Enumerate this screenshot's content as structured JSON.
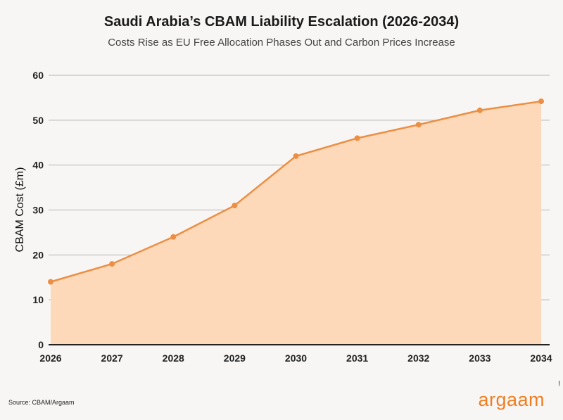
{
  "chart_data": {
    "type": "area",
    "title": "Saudi Arabia’s CBAM Liability Escalation (2026-2034)",
    "subtitle": "Costs Rise as EU Free Allocation Phases Out and Carbon Prices Increase",
    "xlabel": "",
    "ylabel": "CBAM Cost (£m)",
    "categories": [
      "2026",
      "2027",
      "2028",
      "2029",
      "2030",
      "2031",
      "2032",
      "2033",
      "2034"
    ],
    "values": [
      14,
      18,
      24,
      31,
      42,
      46,
      49,
      52.2,
      54.2
    ],
    "ylim": [
      0,
      60
    ],
    "yticks": [
      "0",
      "10",
      "20",
      "30",
      "40",
      "50",
      "60"
    ],
    "grid": true,
    "colors": {
      "line": "#ec8f45",
      "fill": "#fdd9b9",
      "grid": "#b5b5b5",
      "axis": "#222222"
    }
  },
  "footer": {
    "source": "Source: CBAM/Argaam",
    "logo": "argaam",
    "mark": "!"
  }
}
